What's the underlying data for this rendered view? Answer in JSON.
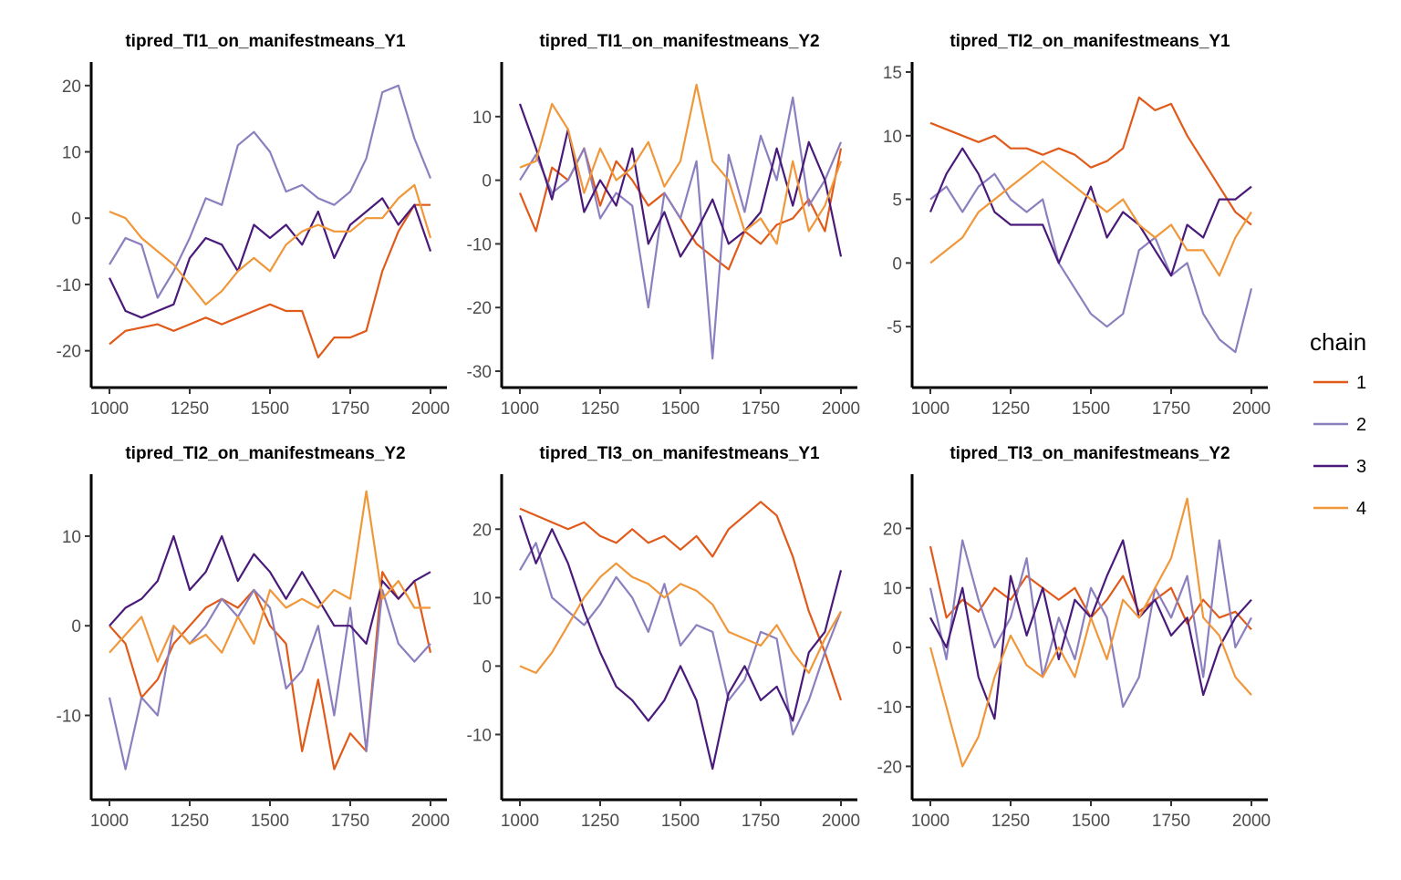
{
  "chart_data": {
    "type": "line",
    "legend": {
      "title": "chain",
      "placement": "right",
      "entries": [
        {
          "label": "1",
          "color": "#E05A1A"
        },
        {
          "label": "2",
          "color": "#8C7FBF"
        },
        {
          "label": "3",
          "color": "#4A1A7A"
        },
        {
          "label": "4",
          "color": "#F0973A"
        }
      ]
    },
    "panels": [
      {
        "title": "tipred_TI1_on_manifestmeans_Y1",
        "xlim": [
          1000,
          2000
        ],
        "ylim": [
          -25,
          23
        ],
        "xticks": [
          1000,
          1250,
          1500,
          1750,
          2000
        ],
        "yticks": [
          -20,
          -10,
          0,
          10,
          20
        ],
        "x": [
          1000,
          1050,
          1100,
          1150,
          1200,
          1250,
          1300,
          1350,
          1400,
          1450,
          1500,
          1550,
          1600,
          1650,
          1700,
          1750,
          1800,
          1850,
          1900,
          1950,
          2000
        ],
        "series": [
          {
            "name": "1",
            "values": [
              -19,
              -17,
              -16.5,
              -16,
              -17,
              -16,
              -15,
              -16,
              -15,
              -14,
              -13,
              -14,
              -14,
              -21,
              -18,
              -18,
              -17,
              -8,
              -2,
              2,
              2
            ]
          },
          {
            "name": "2",
            "values": [
              -7,
              -3,
              -4,
              -12,
              -8,
              -3,
              3,
              2,
              11,
              13,
              10,
              4,
              5,
              3,
              2,
              4,
              9,
              19,
              20,
              12,
              6
            ]
          },
          {
            "name": "3",
            "values": [
              -9,
              -14,
              -15,
              -14,
              -13,
              -6,
              -3,
              -4,
              -8,
              -1,
              -3,
              -1,
              -4,
              1,
              -6,
              -1,
              1,
              3,
              -1,
              2,
              -5
            ]
          },
          {
            "name": "4",
            "values": [
              1,
              0,
              -3,
              -5,
              -7,
              -10,
              -13,
              -11,
              -8,
              -6,
              -8,
              -4,
              -2,
              -1,
              -2,
              -2,
              0,
              0,
              3,
              5,
              -3
            ]
          }
        ]
      },
      {
        "title": "tipred_TI1_on_manifestmeans_Y2",
        "xlim": [
          1000,
          2000
        ],
        "ylim": [
          -32,
          18
        ],
        "xticks": [
          1000,
          1250,
          1500,
          1750,
          2000
        ],
        "yticks": [
          -30,
          -20,
          -10,
          0,
          10
        ],
        "x": [
          1000,
          1050,
          1100,
          1150,
          1200,
          1250,
          1300,
          1350,
          1400,
          1450,
          1500,
          1550,
          1600,
          1650,
          1700,
          1750,
          1800,
          1850,
          1900,
          1950,
          2000
        ],
        "series": [
          {
            "name": "1",
            "values": [
              -2,
              -8,
              2,
              0,
              5,
              -4,
              3,
              0,
              -4,
              -2,
              -6,
              -10,
              -12,
              -14,
              -8,
              -10,
              -7,
              -6,
              -3,
              -8,
              5
            ]
          },
          {
            "name": "2",
            "values": [
              0,
              4,
              -2,
              0,
              5,
              -6,
              -2,
              -4,
              -20,
              -2,
              -6,
              3,
              -28,
              4,
              -5,
              7,
              0,
              13,
              -4,
              0,
              6
            ]
          },
          {
            "name": "3",
            "values": [
              12,
              5,
              -3,
              8,
              -5,
              0,
              -4,
              5,
              -10,
              -5,
              -12,
              -8,
              -3,
              -10,
              -8,
              -5,
              5,
              -4,
              6,
              0,
              -12
            ]
          },
          {
            "name": "4",
            "values": [
              2,
              3,
              12,
              8,
              -2,
              5,
              0,
              2,
              6,
              -1,
              3,
              15,
              3,
              0,
              -8,
              -6,
              -10,
              3,
              -8,
              -4,
              3
            ]
          }
        ]
      },
      {
        "title": "tipred_TI2_on_manifestmeans_Y1",
        "xlim": [
          1000,
          2000
        ],
        "ylim": [
          -9.5,
          15.5
        ],
        "xticks": [
          1000,
          1250,
          1500,
          1750,
          2000
        ],
        "yticks": [
          -5,
          0,
          5,
          10,
          15
        ],
        "x": [
          1000,
          1050,
          1100,
          1150,
          1200,
          1250,
          1300,
          1350,
          1400,
          1450,
          1500,
          1550,
          1600,
          1650,
          1700,
          1750,
          1800,
          1850,
          1900,
          1950,
          2000
        ],
        "series": [
          {
            "name": "1",
            "values": [
              11,
              10.5,
              10,
              9.5,
              10,
              9,
              9,
              8.5,
              9,
              8.5,
              7.5,
              8,
              9,
              13,
              12,
              12.5,
              10,
              8,
              6,
              4,
              3
            ]
          },
          {
            "name": "2",
            "values": [
              5,
              6,
              4,
              6,
              7,
              5,
              4,
              5,
              0,
              -2,
              -4,
              -5,
              -4,
              1,
              2,
              -1,
              0,
              -4,
              -6,
              -7,
              -2
            ]
          },
          {
            "name": "3",
            "values": [
              4,
              7,
              9,
              7,
              4,
              3,
              3,
              3,
              0,
              3,
              6,
              2,
              4,
              3,
              1,
              -1,
              3,
              2,
              5,
              5,
              6
            ]
          },
          {
            "name": "4",
            "values": [
              0,
              1,
              2,
              4,
              5,
              6,
              7,
              8,
              7,
              6,
              5,
              4,
              5,
              3,
              2,
              3,
              1,
              1,
              -1,
              2,
              4
            ]
          }
        ]
      },
      {
        "title": "tipred_TI2_on_manifestmeans_Y2",
        "xlim": [
          1000,
          2000
        ],
        "ylim": [
          -19,
          16.5
        ],
        "xticks": [
          1000,
          1250,
          1500,
          1750,
          2000
        ],
        "yticks": [
          -10,
          0,
          10
        ],
        "x": [
          1000,
          1050,
          1100,
          1150,
          1200,
          1250,
          1300,
          1350,
          1400,
          1450,
          1500,
          1550,
          1600,
          1650,
          1700,
          1750,
          1800,
          1850,
          1900,
          1950,
          2000
        ],
        "series": [
          {
            "name": "1",
            "values": [
              0,
              -2,
              -8,
              -6,
              -2,
              0,
              2,
              3,
              2,
              4,
              0,
              -2,
              -14,
              -6,
              -16,
              -12,
              -14,
              6,
              3,
              5,
              -3
            ]
          },
          {
            "name": "2",
            "values": [
              -8,
              -16,
              -8,
              -10,
              0,
              -2,
              0,
              3,
              1,
              4,
              2,
              -7,
              -5,
              0,
              -10,
              2,
              -14,
              4,
              -2,
              -4,
              -2
            ]
          },
          {
            "name": "3",
            "values": [
              0,
              2,
              3,
              5,
              10,
              4,
              6,
              10,
              5,
              8,
              6,
              3,
              6,
              3,
              0,
              0,
              -2,
              5,
              3,
              5,
              6
            ]
          },
          {
            "name": "4",
            "values": [
              -3,
              -1,
              1,
              -4,
              0,
              -2,
              -1,
              -3,
              1,
              -2,
              4,
              2,
              3,
              2,
              4,
              3,
              15,
              3,
              5,
              2,
              2
            ]
          }
        ]
      },
      {
        "title": "tipred_TI3_on_manifestmeans_Y1",
        "xlim": [
          1000,
          2000
        ],
        "ylim": [
          -19,
          27.5
        ],
        "xticks": [
          1000,
          1250,
          1500,
          1750,
          2000
        ],
        "yticks": [
          -10,
          0,
          10,
          20
        ],
        "x": [
          1000,
          1050,
          1100,
          1150,
          1200,
          1250,
          1300,
          1350,
          1400,
          1450,
          1500,
          1550,
          1600,
          1650,
          1700,
          1750,
          1800,
          1850,
          1900,
          1950,
          2000
        ],
        "series": [
          {
            "name": "1",
            "values": [
              23,
              22,
              21,
              20,
              21,
              19,
              18,
              20,
              18,
              19,
              17,
              19,
              16,
              20,
              22,
              24,
              22,
              16,
              8,
              2,
              -5
            ]
          },
          {
            "name": "2",
            "values": [
              14,
              18,
              10,
              8,
              6,
              9,
              13,
              10,
              5,
              12,
              3,
              6,
              5,
              -5,
              -2,
              5,
              4,
              -10,
              -5,
              2,
              8
            ]
          },
          {
            "name": "3",
            "values": [
              22,
              15,
              20,
              15,
              8,
              2,
              -3,
              -5,
              -8,
              -5,
              0,
              -5,
              -15,
              -4,
              0,
              -5,
              -3,
              -8,
              2,
              5,
              14
            ]
          },
          {
            "name": "4",
            "values": [
              0,
              -1,
              2,
              6,
              10,
              13,
              15,
              13,
              12,
              10,
              12,
              11,
              9,
              5,
              4,
              3,
              6,
              2,
              -1,
              4,
              8
            ]
          }
        ]
      },
      {
        "title": "tipred_TI3_on_manifestmeans_Y2",
        "xlim": [
          1000,
          2000
        ],
        "ylim": [
          -25,
          28.5
        ],
        "xticks": [
          1000,
          1250,
          1500,
          1750,
          2000
        ],
        "yticks": [
          -20,
          -10,
          0,
          10,
          20
        ],
        "x": [
          1000,
          1050,
          1100,
          1150,
          1200,
          1250,
          1300,
          1350,
          1400,
          1450,
          1500,
          1550,
          1600,
          1650,
          1700,
          1750,
          1800,
          1850,
          1900,
          1950,
          2000
        ],
        "series": [
          {
            "name": "1",
            "values": [
              17,
              5,
              8,
              6,
              10,
              8,
              12,
              10,
              8,
              10,
              5,
              8,
              12,
              6,
              8,
              10,
              4,
              8,
              5,
              6,
              3
            ]
          },
          {
            "name": "2",
            "values": [
              10,
              -2,
              18,
              8,
              0,
              5,
              15,
              -5,
              5,
              -2,
              10,
              5,
              -10,
              -5,
              10,
              5,
              12,
              -5,
              18,
              0,
              5
            ]
          },
          {
            "name": "3",
            "values": [
              5,
              0,
              10,
              -5,
              -12,
              12,
              2,
              10,
              -2,
              8,
              5,
              12,
              18,
              5,
              8,
              2,
              5,
              -8,
              0,
              5,
              8
            ]
          },
          {
            "name": "4",
            "values": [
              0,
              -10,
              -20,
              -15,
              -5,
              2,
              -3,
              -5,
              0,
              -5,
              5,
              -2,
              8,
              5,
              10,
              15,
              25,
              5,
              2,
              -5,
              -8
            ]
          }
        ]
      }
    ]
  }
}
